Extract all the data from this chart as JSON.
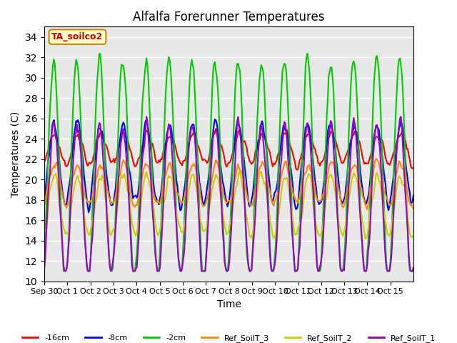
{
  "title": "Alfalfa Forerunner Temperatures",
  "xlabel": "Time",
  "ylabel": "Temperatures (C)",
  "ylim": [
    10,
    35
  ],
  "yticks": [
    10,
    12,
    14,
    16,
    18,
    20,
    22,
    24,
    26,
    28,
    30,
    32,
    34
  ],
  "xtick_labels": [
    "Sep 30",
    "Oct 1",
    "Oct 2",
    "Oct 3",
    "Oct 4",
    "Oct 5",
    "Oct 6",
    "Oct 7",
    "Oct 8",
    "Oct 9",
    "Oct 10",
    "Oct 11",
    "Oct 12",
    "Oct 13",
    "Oct 14",
    "Oct 15"
  ],
  "annotation_text": "TA_soilco2",
  "annotation_color": "#cc0000",
  "annotation_bg": "#ffffcc",
  "annotation_border": "#cc8800",
  "line_colors": {
    "-16cm": "#ff0000",
    "-8cm": "#0000ff",
    "-2cm": "#00cc00",
    "Ref_SoilT_3": "#ff8800",
    "Ref_SoilT_2": "#cccc00",
    "Ref_SoilT_1": "#9900cc"
  },
  "linewidth": 1.5,
  "background_color": "#e8e8e8",
  "grid_color": "#ffffff",
  "legend_colors": [
    "#ff0000",
    "#0000ff",
    "#00cc00",
    "#ff8800",
    "#cccc00",
    "#9900cc"
  ],
  "legend_labels": [
    "-16cm",
    "-8cm",
    "-2cm",
    "Ref_SoilT_3",
    "Ref_SoilT_2",
    "Ref_SoilT_1"
  ]
}
